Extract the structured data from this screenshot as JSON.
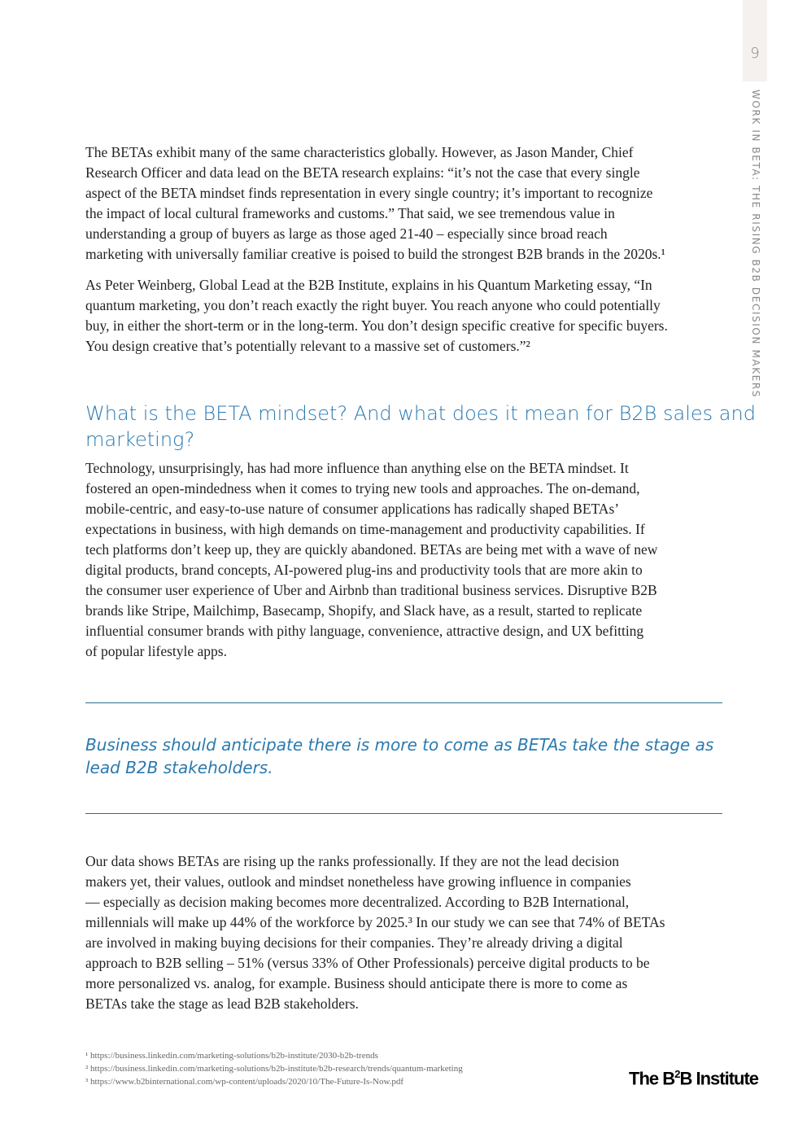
{
  "page_number": "9",
  "running_title": "WORK IN BETA: THE RISING B2B DECISION MAKERS",
  "paragraph1": [
    "The BETAs exhibit many of the same characteristics globally. However, as Jason Mander, Chief",
    "Research Officer and data lead on the BETA research explains: “it’s not the case that every single",
    "aspect of the BETA mindset finds representation in every single country; it’s important to recognize",
    "the impact of local cultural frameworks and customs.” That said, we see tremendous value in",
    "understanding a group of buyers as large as those aged 21-40 – especially since broad reach",
    "marketing with universally familiar creative is poised to build the strongest B2B brands in the 2020s.¹"
  ],
  "paragraph2": [
    "As Peter Weinberg, Global Lead at the B2B Institute, explains in his Quantum Marketing essay, “In",
    "quantum marketing, you don’t reach exactly the right buyer. You reach anyone who could potentially",
    "buy, in either the short-term or in the long-term. You don’t design specific creative for specific buyers.",
    "You design creative that’s potentially relevant to a massive set of customers.”²"
  ],
  "heading": [
    "What is the BETA mindset? And what does it mean for B2B sales and",
    "marketing?"
  ],
  "paragraph3": [
    "Technology, unsurprisingly, has had more influence than anything else on the BETA mindset. It",
    "fostered an open-mindedness when it comes to trying new tools and approaches. The on-demand,",
    "mobile-centric, and easy-to-use nature of consumer applications has radically shaped BETAs’",
    "expectations in business, with high demands on time-management and productivity capabilities. If",
    "tech platforms don’t keep up, they are quickly abandoned. BETAs are being met with a wave of new",
    "digital products, brand concepts, AI-powered plug-ins and productivity tools that are more akin to",
    "the consumer user experience of Uber and Airbnb than traditional business services. Disruptive B2B",
    "brands like Stripe, Mailchimp, Basecamp, Shopify, and Slack have, as a result, started to replicate",
    "influential consumer brands with pithy language, convenience, attractive design, and UX befitting",
    "of popular lifestyle apps."
  ],
  "pull_quote": [
    "Business should anticipate there is more to come as BETAs take the stage as",
    "lead B2B stakeholders."
  ],
  "paragraph4": [
    "Our data shows BETAs are rising up the ranks professionally. If they are not the lead decision",
    "makers yet, their values, outlook and mindset nonetheless have growing influence in companies",
    "— especially as decision making becomes more decentralized. According to B2B International,",
    "millennials will make up 44% of the workforce by 2025.³  In our study we can see that 74% of BETAs",
    "are involved in making buying decisions for their companies. They’re already driving a digital",
    "approach to B2B selling – 51% (versus 33% of Other Professionals) perceive digital products to be",
    "more personalized vs. analog, for example. Business should anticipate there is more to come as",
    "BETAs take the stage as lead B2B stakeholders."
  ],
  "footnotes": [
    "¹ https://business.linkedin.com/marketing-solutions/b2b-institute/2030-b2b-trends",
    "² https://business.linkedin.com/marketing-solutions/b2b-institute/b2b-research/trends/quantum-marketing",
    "³ https://www.b2binternational.com/wp-content/uploads/2020/10/The-Future-Is-Now.pdf"
  ],
  "logo_text": "The B²B Institute",
  "colors": {
    "accent": "#2a7ab0",
    "rule": "#2a6f8f",
    "tab": "#f5f1ee"
  }
}
